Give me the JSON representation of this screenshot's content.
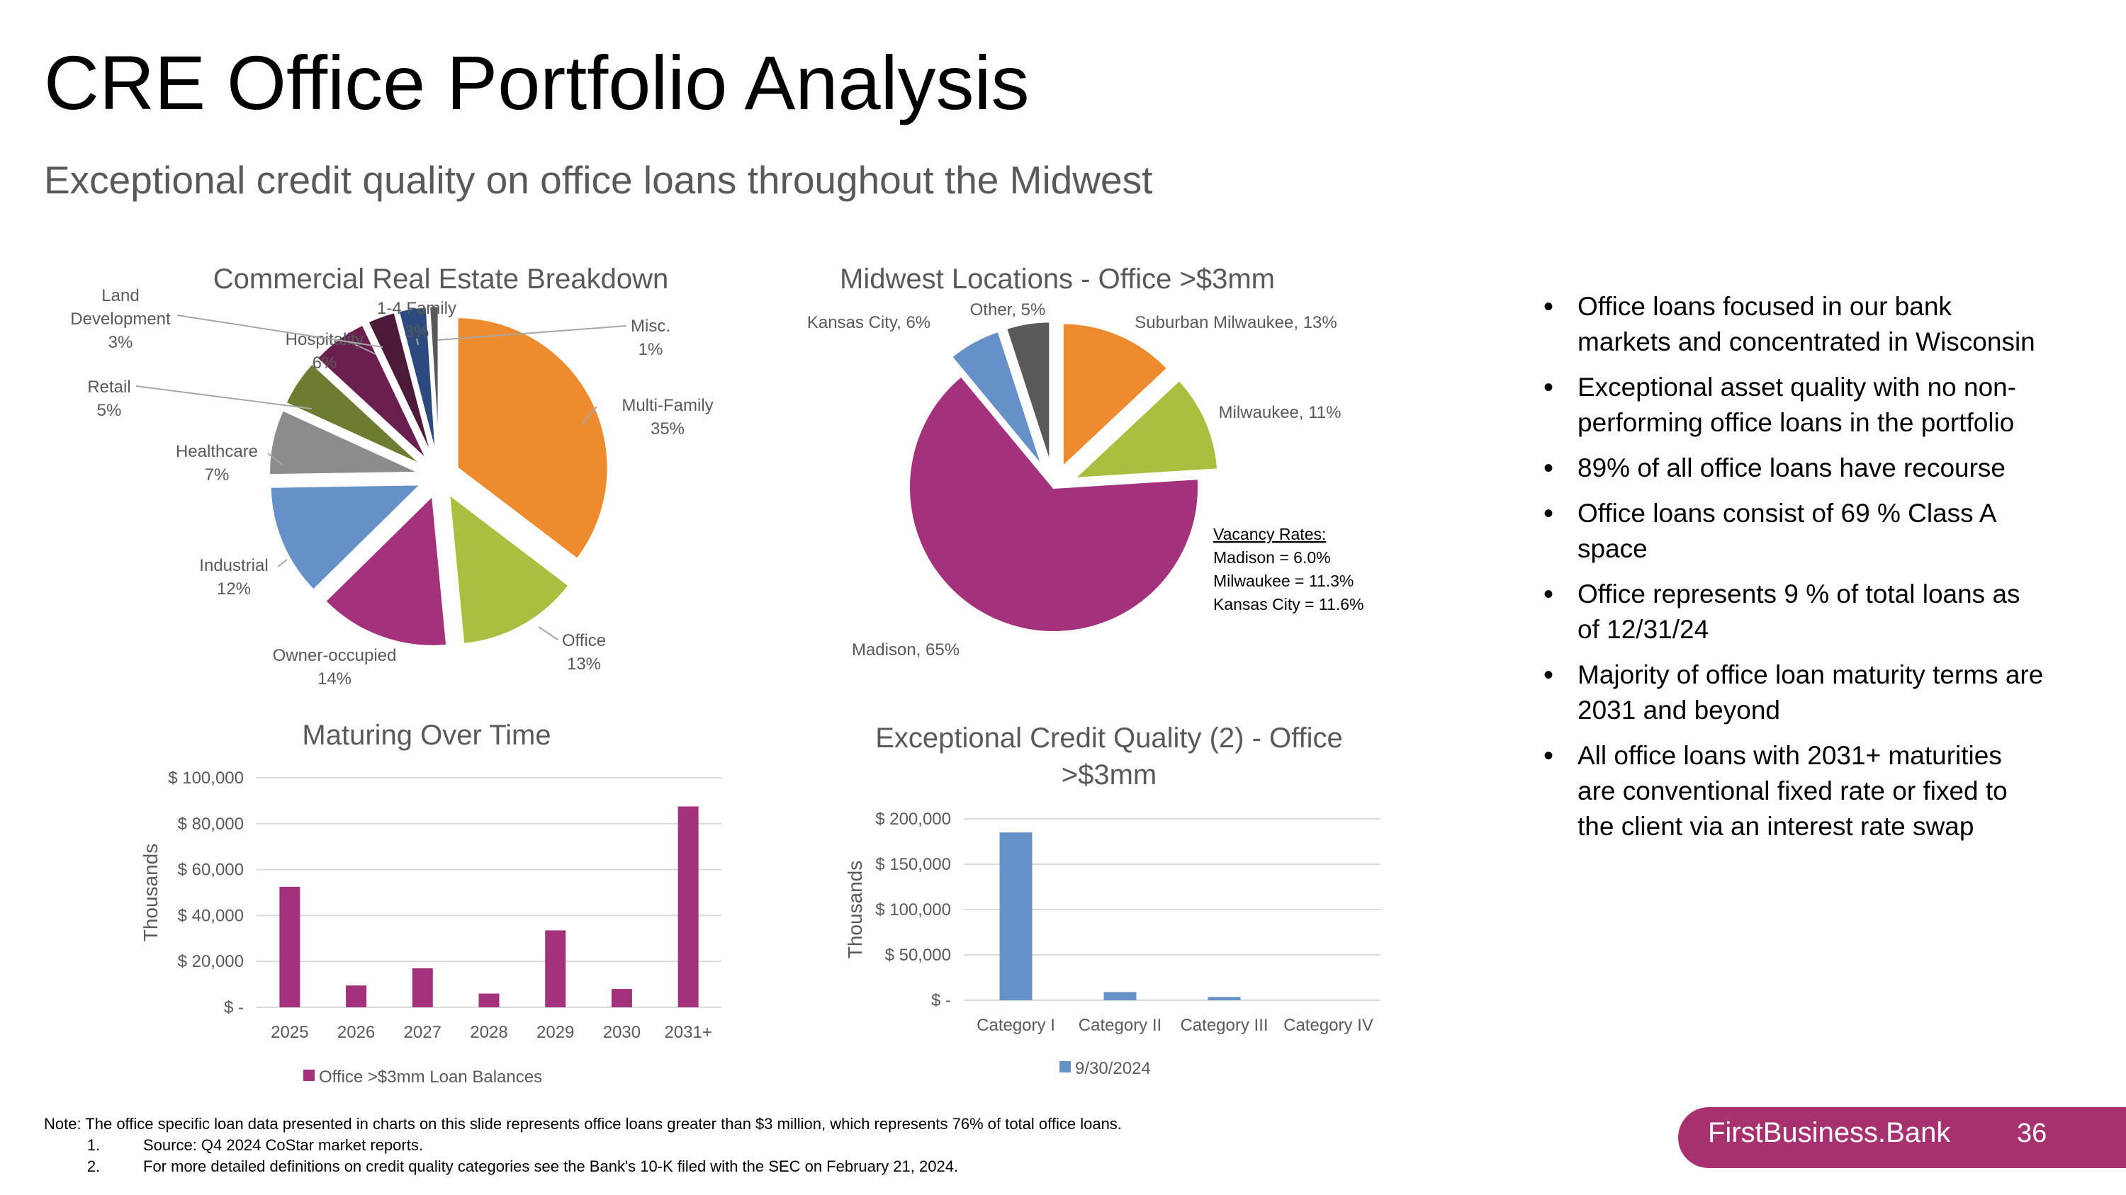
{
  "header": {
    "title": "CRE Office Portfolio Analysis",
    "subtitle": "Exceptional credit quality on office loans throughout the Midwest"
  },
  "colors": {
    "orange": "#ed8b2e",
    "green": "#a9bf3f",
    "magenta": "#a3317c",
    "blue": "#6690c8",
    "gray": "#8c8c8c",
    "olive": "#6c7d32",
    "plum": "#6a1f4e",
    "darkplum": "#4d1a3a",
    "navy": "#2c4a7d",
    "darkgray": "#595959",
    "brand": "#a7306f"
  },
  "chart_data": [
    {
      "type": "pie",
      "title": "Commercial Real Estate Breakdown",
      "slices": [
        {
          "label": "Multi-Family",
          "value": 35
        },
        {
          "label": "Office",
          "value": 13
        },
        {
          "label": "Owner-occupied",
          "value": 14
        },
        {
          "label": "Industrial",
          "value": 12
        },
        {
          "label": "Healthcare",
          "value": 7
        },
        {
          "label": "Retail",
          "value": 5
        },
        {
          "label": "Hospitality",
          "value": 6
        },
        {
          "label": "Land Development",
          "value": 3
        },
        {
          "label": "1-4 Family",
          "value": 3
        },
        {
          "label": "Misc.",
          "value": 1
        }
      ],
      "labels": [
        {
          "lines": [
            "Multi-Family",
            "35%"
          ]
        },
        {
          "lines": [
            "Office",
            "13%"
          ]
        },
        {
          "lines": [
            "Owner-occupied",
            "14%"
          ]
        },
        {
          "lines": [
            "Industrial",
            "12%"
          ]
        },
        {
          "lines": [
            "Healthcare",
            "7%"
          ]
        },
        {
          "lines": [
            "Retail",
            "5%"
          ]
        },
        {
          "lines": [
            "Hospitality",
            "6%"
          ]
        },
        {
          "lines": [
            "Land",
            "Development",
            "3%"
          ]
        },
        {
          "lines": [
            "1-4 Family",
            "3%"
          ]
        },
        {
          "lines": [
            "Misc.",
            "1%"
          ]
        }
      ]
    },
    {
      "type": "pie",
      "title": "Midwest Locations - Office >$3mm",
      "slices": [
        {
          "label": "Suburban Milwaukee",
          "value": 13
        },
        {
          "label": "Milwaukee",
          "value": 11
        },
        {
          "label": "Madison",
          "value": 65
        },
        {
          "label": "Kansas City",
          "value": 6
        },
        {
          "label": "Other",
          "value": 5
        }
      ],
      "labels": [
        {
          "text": "Suburban Milwaukee, 13%"
        },
        {
          "text": "Milwaukee, 11%"
        },
        {
          "text": "Madison, 65%"
        },
        {
          "text": "Kansas City, 6%"
        },
        {
          "text": "Other, 5%"
        }
      ],
      "annotation": {
        "heading": "Vacancy Rates:",
        "lines": [
          "Madison = 6.0%",
          "Milwaukee = 11.3%",
          "Kansas City = 11.6%"
        ]
      }
    },
    {
      "type": "bar",
      "title": "Maturing Over Time",
      "categories": [
        "2025",
        "2026",
        "2027",
        "2028",
        "2029",
        "2030",
        "2031+"
      ],
      "series": [
        {
          "name": "Office >$3mm Loan Balances",
          "values": [
            52500,
            9500,
            17000,
            6000,
            33500,
            8000,
            87500
          ]
        }
      ],
      "ylabel": "Thousands",
      "ylim": [
        0,
        100000
      ],
      "yticks": [
        "$ -",
        "$ 20,000",
        "$ 40,000",
        "$ 60,000",
        "$ 80,000",
        "$ 100,000"
      ],
      "grid": true,
      "legend": "bottom"
    },
    {
      "type": "bar",
      "title": "Exceptional Credit Quality (2) - Office >$3mm",
      "categories": [
        "Category I",
        "Category II",
        "Category III",
        "Category IV"
      ],
      "series": [
        {
          "name": "9/30/2024",
          "values": [
            185000,
            9000,
            3500,
            0
          ]
        }
      ],
      "ylabel": "Thousands",
      "ylim": [
        0,
        200000
      ],
      "yticks": [
        "$ -",
        "$ 50,000",
        "$ 100,000",
        "$ 150,000",
        "$ 200,000"
      ],
      "grid": true,
      "legend": "bottom"
    }
  ],
  "bullets": [
    "Office loans focused in our bank markets and concentrated in Wisconsin",
    "Exceptional asset quality with no non-performing office loans in the portfolio",
    "89% of all office loans have recourse",
    "Office loans consist of 69 % Class A space",
    "Office represents 9 % of total loans as of 12/31/24",
    "Majority of office loan maturity terms are 2031 and beyond",
    "All office loans with 2031+ maturities are conventional fixed rate or fixed to the client via an interest rate swap"
  ],
  "footnote": {
    "note": "Note: The office specific loan data presented in charts on this slide represents office loans greater than $3 million, which represents 76% of total office loans.",
    "items": [
      {
        "num": "1.",
        "text": "Source: Q4 2024 CoStar market reports."
      },
      {
        "num": "2.",
        "text": "For more detailed definitions on credit quality categories see the Bank's 10-K filed with the SEC on February 21, 2024."
      }
    ]
  },
  "brand": {
    "name": "FirstBusiness.Bank",
    "page_number": "36"
  }
}
